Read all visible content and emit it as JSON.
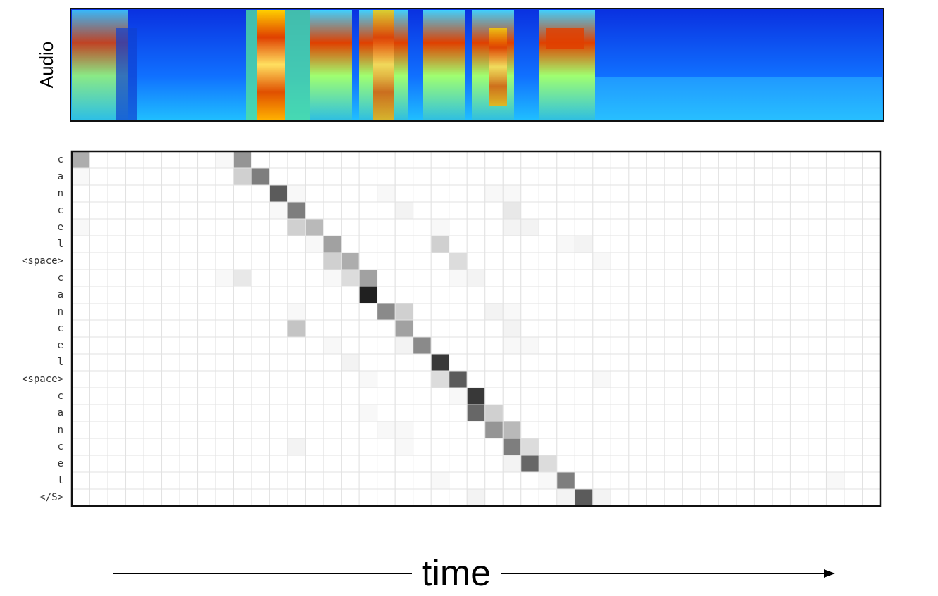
{
  "chart_data": {
    "type": "heatmap",
    "spectrogram_label": "Audio",
    "x_label": "time",
    "colormap": "gray",
    "categories": [
      "c",
      "a",
      "n",
      "c",
      "e",
      "l",
      "<space>",
      "c",
      "a",
      "n",
      "c",
      "e",
      "l",
      "<space>",
      "c",
      "a",
      "n",
      "c",
      "e",
      "l",
      "</S>"
    ],
    "values": [
      [
        0.35,
        0,
        0,
        0,
        0,
        0,
        0,
        0,
        0.03,
        0.45,
        0,
        0,
        0,
        0,
        0,
        0,
        0,
        0,
        0,
        0,
        0,
        0,
        0,
        0,
        0,
        0,
        0,
        0,
        0,
        0,
        0,
        0,
        0,
        0,
        0,
        0,
        0,
        0,
        0,
        0,
        0,
        0,
        0,
        0,
        0
      ],
      [
        0.03,
        0,
        0,
        0,
        0,
        0,
        0,
        0,
        0,
        0.2,
        0.55,
        0,
        0,
        0,
        0,
        0,
        0,
        0,
        0,
        0,
        0,
        0,
        0,
        0,
        0,
        0,
        0,
        0,
        0,
        0,
        0,
        0,
        0,
        0,
        0,
        0,
        0,
        0,
        0,
        0,
        0,
        0,
        0,
        0,
        0
      ],
      [
        0,
        0,
        0,
        0,
        0,
        0,
        0,
        0,
        0,
        0,
        0,
        0.7,
        0.03,
        0,
        0,
        0,
        0,
        0.03,
        0,
        0,
        0,
        0,
        0,
        0.03,
        0.03,
        0,
        0,
        0,
        0,
        0,
        0,
        0,
        0,
        0,
        0,
        0,
        0,
        0,
        0,
        0,
        0,
        0,
        0,
        0,
        0
      ],
      [
        0,
        0,
        0,
        0,
        0,
        0,
        0,
        0,
        0,
        0,
        0,
        0.03,
        0.55,
        0,
        0,
        0,
        0,
        0,
        0.05,
        0,
        0,
        0,
        0,
        0,
        0.1,
        0,
        0,
        0,
        0,
        0,
        0,
        0,
        0,
        0,
        0,
        0,
        0,
        0,
        0,
        0,
        0,
        0,
        0,
        0,
        0
      ],
      [
        0.03,
        0,
        0,
        0,
        0,
        0,
        0,
        0,
        0,
        0,
        0,
        0,
        0.2,
        0.3,
        0,
        0,
        0,
        0,
        0,
        0,
        0.03,
        0,
        0,
        0,
        0.05,
        0.05,
        0,
        0,
        0,
        0,
        0,
        0,
        0,
        0,
        0,
        0,
        0,
        0,
        0,
        0,
        0,
        0,
        0,
        0,
        0
      ],
      [
        0,
        0,
        0,
        0,
        0,
        0,
        0,
        0,
        0,
        0,
        0,
        0,
        0,
        0.03,
        0.4,
        0,
        0,
        0,
        0,
        0,
        0.2,
        0,
        0,
        0,
        0,
        0,
        0,
        0.03,
        0.05,
        0,
        0,
        0,
        0,
        0,
        0,
        0,
        0,
        0,
        0,
        0,
        0,
        0,
        0,
        0,
        0
      ],
      [
        0,
        0,
        0,
        0,
        0,
        0,
        0,
        0,
        0,
        0,
        0,
        0,
        0,
        0,
        0.2,
        0.35,
        0,
        0,
        0,
        0,
        0,
        0.15,
        0,
        0,
        0,
        0,
        0,
        0,
        0,
        0.03,
        0,
        0,
        0,
        0,
        0,
        0,
        0,
        0,
        0,
        0,
        0,
        0,
        0,
        0,
        0
      ],
      [
        0,
        0,
        0,
        0,
        0,
        0,
        0,
        0,
        0.03,
        0.1,
        0,
        0,
        0,
        0,
        0.03,
        0.15,
        0.4,
        0,
        0,
        0,
        0,
        0.03,
        0.05,
        0,
        0,
        0,
        0,
        0,
        0,
        0,
        0,
        0,
        0,
        0,
        0,
        0,
        0,
        0,
        0,
        0,
        0,
        0,
        0,
        0,
        0
      ],
      [
        0,
        0,
        0,
        0,
        0,
        0,
        0,
        0,
        0,
        0,
        0,
        0,
        0,
        0,
        0,
        0,
        0.95,
        0,
        0,
        0,
        0,
        0,
        0,
        0,
        0,
        0,
        0,
        0,
        0,
        0,
        0,
        0,
        0,
        0,
        0,
        0,
        0,
        0,
        0,
        0,
        0,
        0,
        0,
        0,
        0
      ],
      [
        0,
        0,
        0,
        0,
        0,
        0,
        0,
        0,
        0,
        0,
        0,
        0,
        0.03,
        0,
        0,
        0,
        0,
        0.5,
        0.2,
        0,
        0,
        0,
        0,
        0.05,
        0.03,
        0,
        0,
        0,
        0,
        0,
        0,
        0,
        0,
        0,
        0,
        0,
        0,
        0,
        0,
        0,
        0,
        0,
        0,
        0,
        0
      ],
      [
        0,
        0,
        0,
        0,
        0,
        0,
        0,
        0,
        0,
        0,
        0,
        0,
        0.25,
        0,
        0,
        0,
        0,
        0,
        0.4,
        0,
        0,
        0,
        0,
        0,
        0.05,
        0,
        0,
        0,
        0,
        0,
        0,
        0,
        0,
        0,
        0,
        0,
        0,
        0,
        0,
        0,
        0,
        0,
        0,
        0,
        0
      ],
      [
        0,
        0,
        0,
        0,
        0,
        0,
        0,
        0,
        0,
        0,
        0,
        0,
        0,
        0,
        0.03,
        0,
        0,
        0,
        0.05,
        0.5,
        0,
        0,
        0,
        0,
        0.03,
        0.03,
        0,
        0,
        0,
        0,
        0,
        0,
        0,
        0,
        0,
        0,
        0,
        0,
        0,
        0,
        0,
        0,
        0,
        0,
        0
      ],
      [
        0,
        0,
        0,
        0,
        0,
        0,
        0,
        0,
        0,
        0,
        0,
        0,
        0,
        0,
        0,
        0.05,
        0,
        0,
        0,
        0,
        0.85,
        0,
        0,
        0,
        0,
        0,
        0,
        0,
        0,
        0,
        0,
        0,
        0,
        0,
        0,
        0,
        0,
        0,
        0,
        0,
        0,
        0,
        0,
        0,
        0
      ],
      [
        0,
        0,
        0,
        0,
        0,
        0,
        0,
        0,
        0,
        0,
        0,
        0,
        0,
        0,
        0,
        0,
        0.03,
        0,
        0,
        0,
        0.15,
        0.7,
        0,
        0,
        0,
        0,
        0,
        0,
        0,
        0.03,
        0,
        0,
        0,
        0,
        0,
        0,
        0,
        0,
        0,
        0,
        0,
        0,
        0,
        0,
        0
      ],
      [
        0,
        0,
        0,
        0,
        0,
        0,
        0,
        0,
        0,
        0,
        0,
        0,
        0,
        0,
        0,
        0,
        0,
        0,
        0,
        0,
        0,
        0.03,
        0.85,
        0,
        0,
        0,
        0,
        0,
        0,
        0,
        0,
        0,
        0,
        0,
        0,
        0,
        0,
        0,
        0,
        0,
        0,
        0,
        0,
        0,
        0
      ],
      [
        0,
        0,
        0,
        0,
        0,
        0,
        0,
        0,
        0,
        0,
        0,
        0,
        0,
        0,
        0,
        0,
        0.03,
        0,
        0,
        0,
        0,
        0,
        0.65,
        0.2,
        0,
        0,
        0,
        0,
        0,
        0,
        0,
        0,
        0,
        0,
        0,
        0,
        0,
        0,
        0,
        0,
        0,
        0,
        0,
        0,
        0
      ],
      [
        0,
        0,
        0,
        0,
        0,
        0,
        0,
        0,
        0,
        0,
        0,
        0,
        0,
        0,
        0,
        0,
        0,
        0.03,
        0.03,
        0,
        0,
        0,
        0,
        0.45,
        0.3,
        0,
        0,
        0,
        0,
        0,
        0,
        0,
        0,
        0,
        0,
        0,
        0,
        0,
        0,
        0,
        0,
        0,
        0,
        0,
        0
      ],
      [
        0,
        0,
        0,
        0,
        0,
        0,
        0,
        0,
        0,
        0,
        0,
        0,
        0.05,
        0,
        0,
        0,
        0,
        0,
        0.03,
        0,
        0,
        0,
        0,
        0,
        0.55,
        0.15,
        0,
        0,
        0,
        0,
        0,
        0,
        0,
        0,
        0,
        0,
        0,
        0,
        0,
        0,
        0,
        0,
        0,
        0,
        0
      ],
      [
        0,
        0,
        0,
        0,
        0,
        0,
        0,
        0,
        0,
        0,
        0,
        0,
        0,
        0,
        0,
        0,
        0,
        0,
        0,
        0,
        0,
        0,
        0,
        0,
        0.05,
        0.65,
        0.15,
        0,
        0,
        0,
        0,
        0,
        0,
        0,
        0,
        0,
        0,
        0,
        0,
        0,
        0,
        0,
        0,
        0,
        0
      ],
      [
        0,
        0,
        0,
        0,
        0,
        0,
        0,
        0,
        0,
        0,
        0,
        0,
        0,
        0,
        0,
        0,
        0,
        0,
        0,
        0,
        0.03,
        0,
        0,
        0,
        0,
        0,
        0.03,
        0.55,
        0,
        0,
        0,
        0,
        0,
        0,
        0,
        0,
        0,
        0,
        0,
        0,
        0,
        0,
        0.03,
        0,
        0
      ],
      [
        0,
        0,
        0,
        0,
        0,
        0,
        0,
        0,
        0,
        0,
        0,
        0,
        0,
        0,
        0,
        0,
        0,
        0,
        0,
        0,
        0,
        0,
        0.05,
        0,
        0,
        0,
        0,
        0.05,
        0.7,
        0.05,
        0,
        0,
        0,
        0,
        0,
        0,
        0,
        0,
        0,
        0,
        0,
        0,
        0,
        0,
        0
      ]
    ]
  }
}
